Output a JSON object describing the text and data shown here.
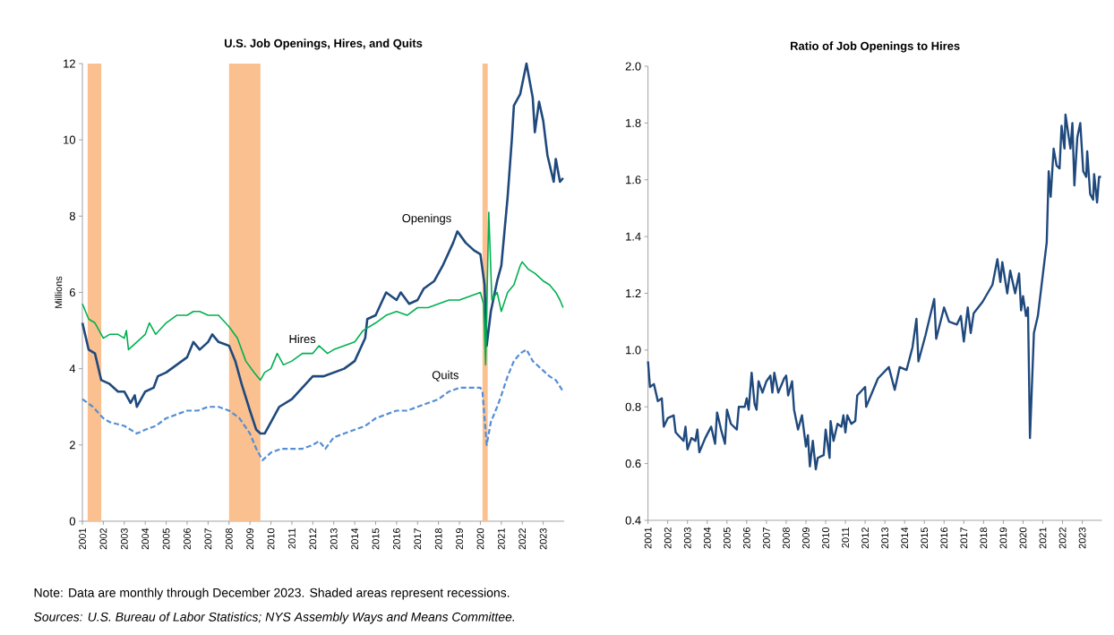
{
  "chart_data": [
    {
      "type": "line",
      "title": "U.S. Job Openings, Hires, and Quits",
      "ylabel": "Millions",
      "xlim": [
        2001,
        2024
      ],
      "xticks": [
        2001,
        2002,
        2003,
        2004,
        2005,
        2006,
        2007,
        2008,
        2009,
        2010,
        2011,
        2012,
        2013,
        2014,
        2015,
        2016,
        2017,
        2018,
        2019,
        2020,
        2021,
        2022,
        2023
      ],
      "ylim": [
        0,
        12
      ],
      "yticks": [
        0,
        2,
        4,
        6,
        8,
        10,
        12
      ],
      "bands": [
        {
          "axis": "x",
          "from": 2001.25,
          "to": 2001.9,
          "color": "#fac090"
        },
        {
          "axis": "x",
          "from": 2008.0,
          "to": 2009.5,
          "color": "#fac090"
        },
        {
          "axis": "x",
          "from": 2020.1,
          "to": 2020.35,
          "color": "#fac090"
        }
      ],
      "series": [
        {
          "name": "Openings",
          "color": "#1f497d",
          "line_style": "solid",
          "x": [
            2001.0,
            2001.3,
            2001.6,
            2001.9,
            2002.3,
            2002.7,
            2003.0,
            2003.3,
            2003.5,
            2003.6,
            2004.0,
            2004.4,
            2004.6,
            2005.0,
            2005.5,
            2006.0,
            2006.3,
            2006.6,
            2007.0,
            2007.2,
            2007.5,
            2008.0,
            2008.3,
            2008.6,
            2009.0,
            2009.3,
            2009.5,
            2009.7,
            2010.0,
            2010.4,
            2011.0,
            2011.5,
            2012.0,
            2012.5,
            2013.0,
            2013.5,
            2014.0,
            2014.5,
            2014.6,
            2015.0,
            2015.5,
            2016.0,
            2016.2,
            2016.6,
            2017.0,
            2017.3,
            2017.8,
            2018.2,
            2018.7,
            2018.9,
            2019.3,
            2019.7,
            2020.0,
            2020.2,
            2020.3,
            2020.5,
            2020.8,
            2021.0,
            2021.3,
            2021.5,
            2021.6,
            2021.9,
            2022.2,
            2022.5,
            2022.6,
            2022.8,
            2023.0,
            2023.2,
            2023.5,
            2023.6,
            2023.8,
            2023.95
          ],
          "values": [
            5.2,
            4.5,
            4.4,
            3.7,
            3.6,
            3.4,
            3.4,
            3.1,
            3.3,
            3.0,
            3.4,
            3.5,
            3.8,
            3.9,
            4.1,
            4.3,
            4.7,
            4.5,
            4.7,
            4.9,
            4.7,
            4.6,
            4.2,
            3.6,
            2.9,
            2.4,
            2.3,
            2.3,
            2.6,
            3.0,
            3.2,
            3.5,
            3.8,
            3.8,
            3.9,
            4.0,
            4.2,
            4.8,
            5.3,
            5.4,
            6.0,
            5.8,
            6.0,
            5.7,
            5.8,
            6.1,
            6.3,
            6.7,
            7.3,
            7.6,
            7.3,
            7.1,
            7.0,
            6.2,
            4.6,
            5.5,
            6.3,
            6.7,
            8.5,
            10.0,
            10.9,
            11.2,
            12.0,
            11.1,
            10.2,
            11.0,
            10.5,
            9.6,
            8.9,
            9.5,
            8.9,
            9.0
          ]
        },
        {
          "name": "Hires",
          "color": "#00b050",
          "line_style": "solid",
          "x": [
            2001.0,
            2001.3,
            2001.6,
            2002.0,
            2002.3,
            2002.7,
            2003.0,
            2003.1,
            2003.2,
            2003.6,
            2004.0,
            2004.2,
            2004.5,
            2005.0,
            2005.5,
            2006.0,
            2006.3,
            2006.6,
            2007.0,
            2007.5,
            2008.0,
            2008.4,
            2008.8,
            2009.2,
            2009.5,
            2009.7,
            2010.0,
            2010.3,
            2010.6,
            2011.0,
            2011.5,
            2012.0,
            2012.3,
            2012.7,
            2013.0,
            2013.5,
            2014.0,
            2014.4,
            2015.0,
            2015.5,
            2016.0,
            2016.5,
            2017.0,
            2017.5,
            2018.0,
            2018.5,
            2019.0,
            2019.5,
            2020.0,
            2020.15,
            2020.25,
            2020.4,
            2020.55,
            2020.8,
            2021.0,
            2021.3,
            2021.6,
            2021.9,
            2022.0,
            2022.3,
            2022.6,
            2023.0,
            2023.3,
            2023.6,
            2023.8,
            2023.95
          ],
          "values": [
            5.7,
            5.3,
            5.2,
            4.8,
            4.9,
            4.9,
            4.8,
            5.0,
            4.5,
            4.7,
            4.9,
            5.2,
            4.9,
            5.2,
            5.4,
            5.4,
            5.5,
            5.5,
            5.4,
            5.4,
            5.1,
            4.8,
            4.2,
            3.9,
            3.7,
            3.9,
            4.0,
            4.4,
            4.1,
            4.2,
            4.4,
            4.4,
            4.6,
            4.4,
            4.5,
            4.6,
            4.7,
            5.0,
            5.2,
            5.4,
            5.5,
            5.4,
            5.6,
            5.6,
            5.7,
            5.8,
            5.8,
            5.9,
            6.0,
            5.7,
            4.1,
            8.1,
            5.8,
            6.0,
            5.5,
            6.0,
            6.2,
            6.7,
            6.8,
            6.6,
            6.5,
            6.3,
            6.2,
            6.0,
            5.8,
            5.6
          ]
        },
        {
          "name": "Quits",
          "color": "#558ed5",
          "line_style": "dashed",
          "x": [
            2001.0,
            2001.5,
            2002.0,
            2002.3,
            2003.0,
            2003.6,
            2004.0,
            2004.5,
            2005.0,
            2005.5,
            2006.0,
            2006.5,
            2007.0,
            2007.5,
            2008.0,
            2008.5,
            2009.0,
            2009.3,
            2009.6,
            2010.0,
            2010.5,
            2011.0,
            2011.5,
            2012.0,
            2012.3,
            2012.6,
            2013.0,
            2013.5,
            2014.0,
            2014.5,
            2015.0,
            2015.5,
            2016.0,
            2016.5,
            2017.0,
            2017.5,
            2018.0,
            2018.5,
            2019.0,
            2019.5,
            2020.0,
            2020.1,
            2020.3,
            2020.5,
            2020.8,
            2021.0,
            2021.3,
            2021.6,
            2021.9,
            2022.2,
            2022.5,
            2022.9,
            2023.3,
            2023.6,
            2023.95
          ],
          "values": [
            3.2,
            3.0,
            2.7,
            2.6,
            2.5,
            2.3,
            2.4,
            2.5,
            2.7,
            2.8,
            2.9,
            2.9,
            3.0,
            3.0,
            2.9,
            2.7,
            2.3,
            1.9,
            1.6,
            1.8,
            1.9,
            1.9,
            1.9,
            2.0,
            2.1,
            1.9,
            2.2,
            2.3,
            2.4,
            2.5,
            2.7,
            2.8,
            2.9,
            2.9,
            3.0,
            3.1,
            3.2,
            3.4,
            3.5,
            3.5,
            3.5,
            3.4,
            2.0,
            2.6,
            3.0,
            3.3,
            3.8,
            4.2,
            4.4,
            4.5,
            4.2,
            4.0,
            3.8,
            3.7,
            3.4
          ]
        }
      ],
      "annotations": [
        "Note: Data are monthly through December 2023. Shaded areas represent recessions.",
        "Sources:  U.S. Bureau of Labor Statistics; NYS Assembly Ways and Means Committee."
      ]
    },
    {
      "type": "line",
      "title": "Ratio of Job Openings to Hires",
      "xlim": [
        2001,
        2024
      ],
      "xticks": [
        2001,
        2002,
        2003,
        2004,
        2005,
        2006,
        2007,
        2008,
        2009,
        2010,
        2011,
        2012,
        2013,
        2014,
        2015,
        2016,
        2017,
        2018,
        2019,
        2020,
        2021,
        2022,
        2023
      ],
      "ylim": [
        0.4,
        2.0
      ],
      "yticks": [
        0.4,
        0.6,
        0.8,
        {
          "value": 1.0,
          "label": "1.0"
        },
        1.2,
        1.4,
        1.6,
        1.8,
        {
          "value": 2.0,
          "label": "2.0"
        }
      ],
      "series": [
        {
          "color": "#1f497d",
          "line_style": "solid",
          "x": [
            2001.0,
            2001.1,
            2001.3,
            2001.5,
            2001.7,
            2001.8,
            2002.0,
            2002.3,
            2002.4,
            2002.8,
            2002.9,
            2003.0,
            2003.2,
            2003.4,
            2003.5,
            2003.6,
            2003.9,
            2004.2,
            2004.4,
            2004.5,
            2004.7,
            2004.9,
            2005.0,
            2005.2,
            2005.5,
            2005.6,
            2005.9,
            2006.0,
            2006.1,
            2006.25,
            2006.4,
            2006.5,
            2006.6,
            2006.8,
            2007.0,
            2007.2,
            2007.3,
            2007.4,
            2007.6,
            2007.9,
            2008.0,
            2008.1,
            2008.3,
            2008.4,
            2008.6,
            2008.8,
            2009.0,
            2009.1,
            2009.2,
            2009.35,
            2009.5,
            2009.6,
            2009.9,
            2010.0,
            2010.2,
            2010.25,
            2010.4,
            2010.6,
            2010.8,
            2010.9,
            2011.0,
            2011.1,
            2011.3,
            2011.5,
            2011.6,
            2012.0,
            2012.05,
            2012.65,
            2013.2,
            2013.5,
            2013.75,
            2014.1,
            2014.4,
            2014.6,
            2014.7,
            2015.05,
            2015.5,
            2015.6,
            2016.0,
            2016.25,
            2016.65,
            2016.85,
            2017.0,
            2017.2,
            2017.35,
            2017.5,
            2017.95,
            2018.45,
            2018.7,
            2018.85,
            2018.95,
            2019.2,
            2019.35,
            2019.6,
            2019.8,
            2019.9,
            2020.0,
            2020.15,
            2020.25,
            2020.35,
            2020.55,
            2020.75,
            2021.2,
            2021.3,
            2021.4,
            2021.55,
            2021.7,
            2021.85,
            2021.95,
            2022.1,
            2022.15,
            2022.4,
            2022.5,
            2022.6,
            2022.75,
            2022.9,
            2023.05,
            2023.2,
            2023.25,
            2023.4,
            2023.55,
            2023.6,
            2023.75,
            2023.85,
            2023.95
          ],
          "values": [
            0.96,
            0.87,
            0.88,
            0.82,
            0.83,
            0.73,
            0.76,
            0.77,
            0.71,
            0.68,
            0.73,
            0.65,
            0.69,
            0.68,
            0.72,
            0.64,
            0.69,
            0.73,
            0.67,
            0.78,
            0.72,
            0.67,
            0.79,
            0.74,
            0.72,
            0.8,
            0.8,
            0.83,
            0.79,
            0.92,
            0.81,
            0.79,
            0.89,
            0.85,
            0.89,
            0.91,
            0.85,
            0.92,
            0.85,
            0.9,
            0.91,
            0.84,
            0.89,
            0.79,
            0.72,
            0.77,
            0.66,
            0.7,
            0.59,
            0.68,
            0.58,
            0.62,
            0.63,
            0.72,
            0.62,
            0.75,
            0.68,
            0.74,
            0.73,
            0.77,
            0.71,
            0.77,
            0.74,
            0.75,
            0.84,
            0.87,
            0.8,
            0.9,
            0.94,
            0.86,
            0.94,
            0.93,
            1.01,
            1.11,
            0.96,
            1.05,
            1.18,
            1.04,
            1.15,
            1.1,
            1.09,
            1.12,
            1.03,
            1.15,
            1.06,
            1.13,
            1.17,
            1.23,
            1.32,
            1.24,
            1.31,
            1.2,
            1.28,
            1.2,
            1.27,
            1.14,
            1.19,
            1.12,
            1.15,
            0.69,
            1.06,
            1.12,
            1.38,
            1.63,
            1.54,
            1.71,
            1.65,
            1.64,
            1.79,
            1.71,
            1.83,
            1.71,
            1.8,
            1.58,
            1.75,
            1.8,
            1.63,
            1.61,
            1.7,
            1.55,
            1.53,
            1.62,
            1.52,
            1.61,
            1.61
          ]
        }
      ]
    }
  ]
}
